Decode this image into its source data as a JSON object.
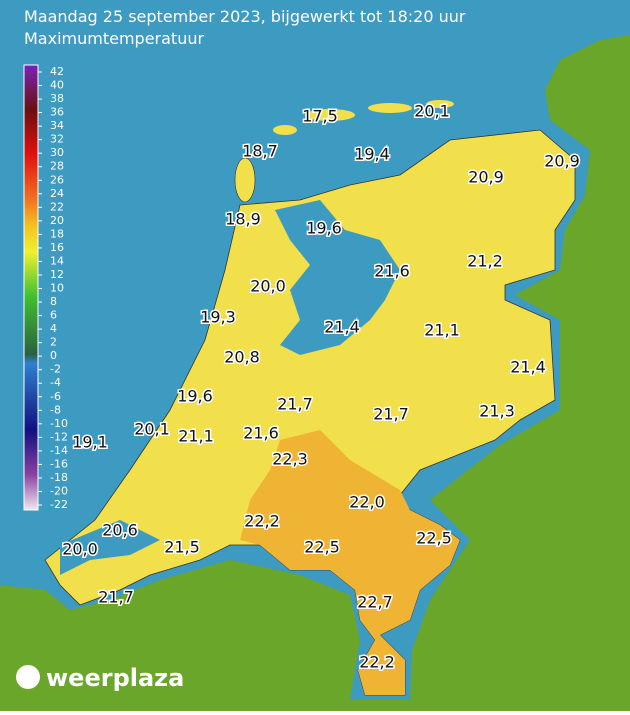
{
  "header": {
    "title": "Maandag 25 september 2023, bijgewerkt tot 18:20 uur",
    "subtitle": "Maximumtemperatuur"
  },
  "legend": {
    "ticks": [
      42,
      40,
      38,
      36,
      34,
      32,
      30,
      28,
      26,
      24,
      22,
      20,
      18,
      16,
      14,
      12,
      10,
      8,
      6,
      4,
      2,
      0,
      -2,
      -4,
      -6,
      -8,
      -10,
      -12,
      -14,
      -16,
      -18,
      -20,
      -22
    ]
  },
  "stations": [
    "17,5",
    "20,1",
    "18,7",
    "19,4",
    "20,9",
    "20,9",
    "18,9",
    "19,6",
    "21,6",
    "21,2",
    "20,0",
    "19,3",
    "21,4",
    "21,1",
    "20,8",
    "21,4",
    "19,6",
    "21,7",
    "21,7",
    "21,3",
    "20,1",
    "21,1",
    "21,6",
    "19,1",
    "22,3",
    "22,0",
    "20,6",
    "22,2",
    "22,5",
    "20,0",
    "21,5",
    "22,5",
    "22,7",
    "21,7",
    "22,2"
  ],
  "logo": "weerplaza"
}
